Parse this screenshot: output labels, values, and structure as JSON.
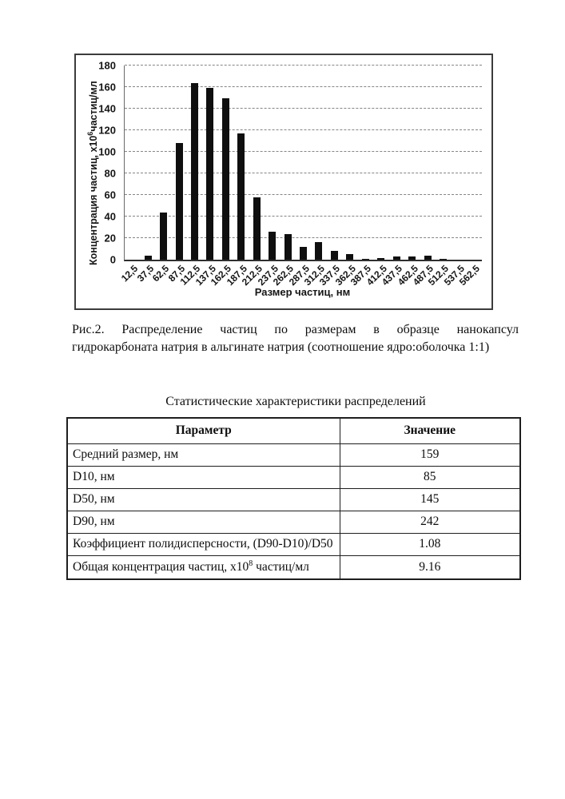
{
  "figure_caption": {
    "line1": "Рис.2. Распределение частиц по размерам в образце нанокапсул",
    "line2": "гидрокарбоната натрия в альгинате натрия (соотношение ядро:оболочка 1:1)"
  },
  "chart_data": {
    "type": "bar",
    "title": "",
    "categories": [
      "12,5",
      "37,5",
      "62,5",
      "87,5",
      "112,5",
      "137,5",
      "162,5",
      "187,5",
      "212,5",
      "237,5",
      "262,5",
      "287,5",
      "312,5",
      "337,5",
      "362,5",
      "387,5",
      "412,5",
      "437,5",
      "462,5",
      "487,5",
      "512,5",
      "537,5",
      "562,5"
    ],
    "values": [
      0,
      4,
      44,
      108,
      164,
      159,
      150,
      117,
      58,
      26,
      24,
      12,
      16,
      8,
      5,
      0.5,
      1.5,
      3,
      3,
      4,
      0.5,
      0,
      0
    ],
    "xlabel": "Размер частиц, нм",
    "ylabel": {
      "prefix": "Концентрация частиц, х10",
      "sup": "6",
      "suffix": "частиц/мл"
    },
    "ylim": [
      0,
      180
    ],
    "ytick_step": 20,
    "grid": "horizontal-dashed",
    "legend": "none",
    "bar_color": "#0f0f0f"
  },
  "stats_table": {
    "title": "Статистические характеристики распределений",
    "headers": [
      "Параметр",
      "Значение"
    ],
    "rows": [
      {
        "param": "Средний размер, нм",
        "value": "159"
      },
      {
        "param": "D10, нм",
        "value": "85"
      },
      {
        "param": "D50, нм",
        "value": "145"
      },
      {
        "param": "D90, нм",
        "value": "242"
      },
      {
        "param": "Коэффициент полидисперсности, (D90-D10)/D50",
        "value": "1.08"
      },
      {
        "param_pre": "Общая концентрация частиц, х10",
        "param_sup": "8",
        "param_post": " частиц/мл",
        "value": "9.16"
      }
    ]
  }
}
